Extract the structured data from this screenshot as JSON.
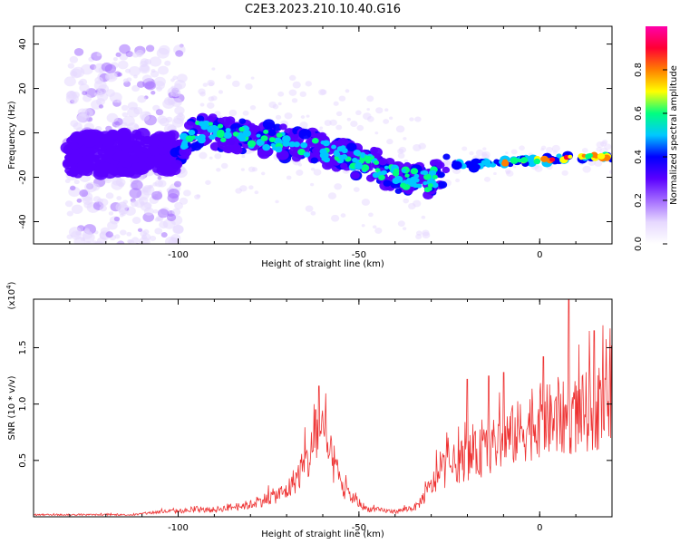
{
  "title": "C2E3.2023.210.10.40.G16",
  "chart_data": [
    {
      "type": "heatmap",
      "xlabel": "Height of straight line (km)",
      "ylabel": "Frequency (Hz)",
      "xlim": [
        -140,
        20
      ],
      "ylim": [
        -50,
        48
      ],
      "x_ticks": [
        -100,
        -50,
        0
      ],
      "y_ticks": [
        -40,
        -20,
        0,
        20,
        40
      ],
      "colorbar": {
        "label": "Normalized spectral amplitude",
        "range": [
          0.0,
          1.0
        ],
        "ticks": [
          0.0,
          0.2,
          0.4,
          0.6,
          0.8
        ],
        "colors": [
          "#ffffff",
          "#e6d8ff",
          "#a36bff",
          "#5a00ff",
          "#0000ff",
          "#00c8ff",
          "#00ff80",
          "#ffff00",
          "#ff7f00",
          "#ff0033",
          "#ff00aa"
        ]
      },
      "ridge": [
        {
          "x": -140,
          "y": 2
        },
        {
          "x": -110,
          "y": 3
        },
        {
          "x": -105,
          "y": 13
        },
        {
          "x": -95,
          "y": 11
        },
        {
          "x": -85,
          "y": 9
        },
        {
          "x": -75,
          "y": 6
        },
        {
          "x": -65,
          "y": 2
        },
        {
          "x": -55,
          "y": -3
        },
        {
          "x": -48,
          "y": -8
        },
        {
          "x": -40,
          "y": -10
        },
        {
          "x": -33,
          "y": -3
        },
        {
          "x": -25,
          "y": -3
        },
        {
          "x": -15,
          "y": -1
        },
        {
          "x": -5,
          "y": 0
        },
        {
          "x": 5,
          "y": 1
        },
        {
          "x": 20,
          "y": 2
        }
      ],
      "grid": false
    },
    {
      "type": "line",
      "xlabel": "Height of straight line (km)",
      "ylabel": "SNR (10 * v/v)",
      "y_multiplier": "(x10^4)",
      "xlim": [
        -140,
        20
      ],
      "ylim": [
        0,
        1.93
      ],
      "x_ticks": [
        -100,
        -50,
        0
      ],
      "y_ticks": [
        0.5,
        1.0,
        1.5
      ],
      "series": [
        {
          "color": "#ee3333",
          "envelope": [
            {
              "x": -140,
              "y": 0.02
            },
            {
              "x": -112,
              "y": 0.02
            },
            {
              "x": -105,
              "y": 0.05
            },
            {
              "x": -90,
              "y": 0.07
            },
            {
              "x": -80,
              "y": 0.12
            },
            {
              "x": -70,
              "y": 0.25
            },
            {
              "x": -64,
              "y": 0.55
            },
            {
              "x": -61,
              "y": 0.85
            },
            {
              "x": -58,
              "y": 0.6
            },
            {
              "x": -54,
              "y": 0.25
            },
            {
              "x": -48,
              "y": 0.08
            },
            {
              "x": -40,
              "y": 0.05
            },
            {
              "x": -34,
              "y": 0.1
            },
            {
              "x": -30,
              "y": 0.3
            },
            {
              "x": -27,
              "y": 0.45
            },
            {
              "x": -22,
              "y": 0.55
            },
            {
              "x": -15,
              "y": 0.65
            },
            {
              "x": -10,
              "y": 0.75
            },
            {
              "x": -5,
              "y": 0.85
            },
            {
              "x": 0,
              "y": 0.95
            },
            {
              "x": 5,
              "y": 0.95
            },
            {
              "x": 10,
              "y": 1.0
            },
            {
              "x": 20,
              "y": 1.1
            }
          ],
          "peaks": [
            {
              "x": -61,
              "y": 1.16
            },
            {
              "x": -62,
              "y": 0.95
            },
            {
              "x": -20,
              "y": 1.22
            },
            {
              "x": -14,
              "y": 1.25
            },
            {
              "x": -10,
              "y": 1.28
            },
            {
              "x": 1,
              "y": 1.42
            },
            {
              "x": 8,
              "y": 1.93
            },
            {
              "x": 15,
              "y": 1.65
            },
            {
              "x": 20,
              "y": 1.52
            }
          ]
        }
      ],
      "grid": false
    }
  ]
}
